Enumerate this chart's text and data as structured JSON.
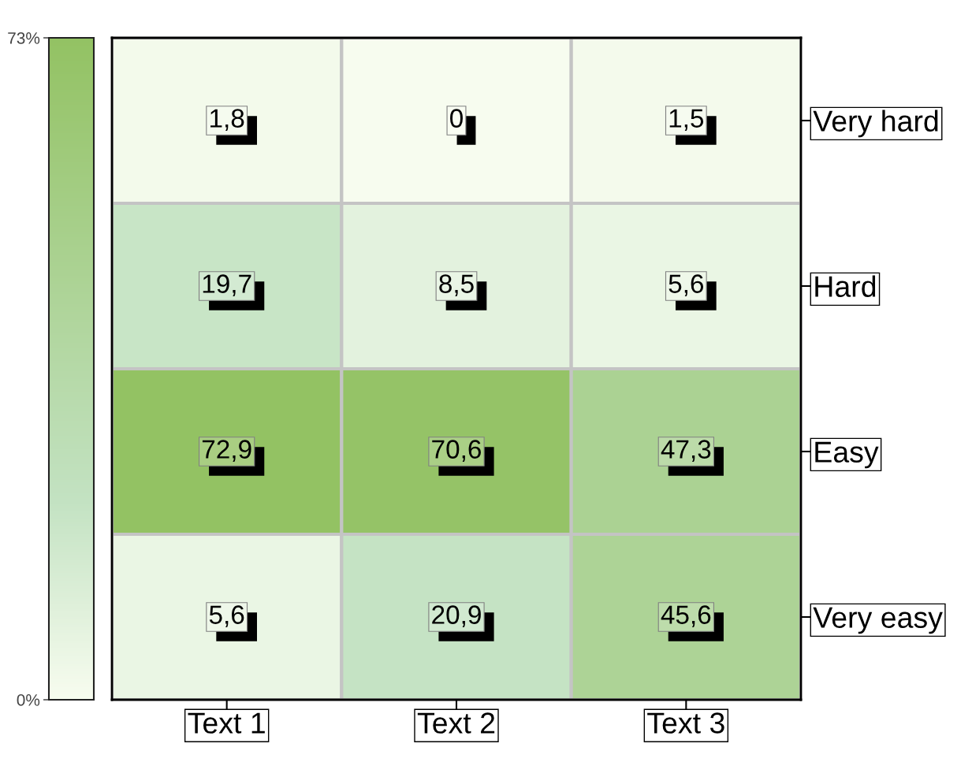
{
  "chart_data": {
    "type": "heatmap",
    "categories": [
      "Text 1",
      "Text 2",
      "Text 3"
    ],
    "y_categories": [
      "Very hard",
      "Hard",
      "Easy",
      "Very easy"
    ],
    "cells": [
      [
        1.8,
        0,
        1.5
      ],
      [
        19.7,
        8.5,
        5.6
      ],
      [
        72.9,
        70.6,
        47.3
      ],
      [
        5.6,
        20.9,
        45.6
      ]
    ],
    "cell_labels": [
      [
        "1,8",
        "0",
        "1,5"
      ],
      [
        "19,7",
        "8,5",
        "5,6"
      ],
      [
        "72,9",
        "70,6",
        "47,3"
      ],
      [
        "5,6",
        "20,9",
        "45,6"
      ]
    ],
    "clim": [
      0,
      73
    ],
    "cticks": [
      {
        "value": 0,
        "label": "0%"
      },
      {
        "value": 73,
        "label": "73%"
      }
    ]
  }
}
